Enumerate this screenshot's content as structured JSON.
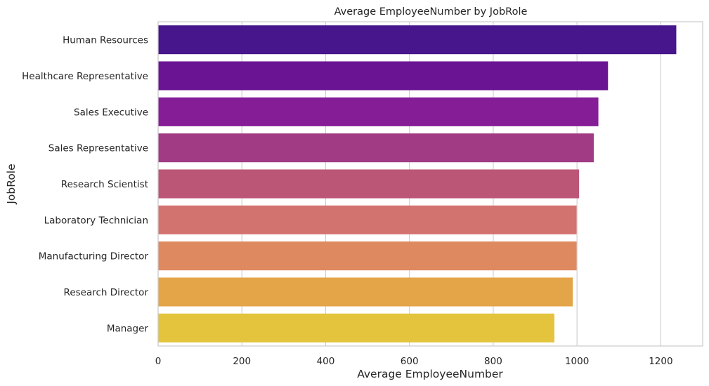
{
  "chart_data": {
    "type": "bar",
    "orientation": "horizontal",
    "title": "Average EmployeeNumber by JobRole",
    "xlabel": "Average EmployeeNumber",
    "ylabel": "JobRole",
    "xlim": [
      0,
      1300
    ],
    "xticks": [
      0,
      200,
      400,
      600,
      800,
      1000,
      1200
    ],
    "grid": true,
    "palette": "plasma",
    "categories": [
      "Human Resources",
      "Healthcare Representative",
      "Sales Executive",
      "Sales Representative",
      "Research Scientist",
      "Laboratory Technician",
      "Manufacturing Director",
      "Research Director",
      "Manager"
    ],
    "values": [
      1237,
      1074,
      1051,
      1040,
      1005,
      999,
      999,
      990,
      946
    ],
    "colors": [
      "#47158c",
      "#6a1494",
      "#851d97",
      "#a03b84",
      "#bb5677",
      "#d37370",
      "#df8961",
      "#e4a548",
      "#e3c43c"
    ]
  }
}
